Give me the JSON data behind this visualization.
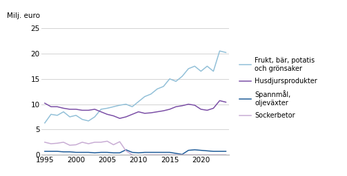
{
  "ylabel": "Milj. euro",
  "ylim": [
    0,
    25
  ],
  "yticks": [
    0,
    5,
    10,
    15,
    20,
    25
  ],
  "xlim": [
    1994.5,
    2024.5
  ],
  "xticks": [
    1995,
    2000,
    2005,
    2010,
    2015,
    2020
  ],
  "background_color": "#ffffff",
  "series": {
    "frukt": {
      "label": "Frukt, bär, potatis\noch grönsaker",
      "color": "#92c0d8",
      "years": [
        1995,
        1996,
        1997,
        1998,
        1999,
        2000,
        2001,
        2002,
        2003,
        2004,
        2005,
        2006,
        2007,
        2008,
        2009,
        2010,
        2011,
        2012,
        2013,
        2014,
        2015,
        2016,
        2017,
        2018,
        2019,
        2020,
        2021,
        2022,
        2023,
        2024
      ],
      "values": [
        6.3,
        8.0,
        7.8,
        8.5,
        7.5,
        7.8,
        7.0,
        6.7,
        7.5,
        9.0,
        9.2,
        9.5,
        9.8,
        10.0,
        9.5,
        10.5,
        11.5,
        12.0,
        13.0,
        13.5,
        15.0,
        14.5,
        15.5,
        17.0,
        17.5,
        16.5,
        17.5,
        16.5,
        20.5,
        20.2
      ]
    },
    "husdjur": {
      "label": "Husdjursprodukter",
      "color": "#7b4fa6",
      "years": [
        1995,
        1996,
        1997,
        1998,
        1999,
        2000,
        2001,
        2002,
        2003,
        2004,
        2005,
        2006,
        2007,
        2008,
        2009,
        2010,
        2011,
        2012,
        2013,
        2014,
        2015,
        2016,
        2017,
        2018,
        2019,
        2020,
        2021,
        2022,
        2023,
        2024
      ],
      "values": [
        10.2,
        9.5,
        9.5,
        9.2,
        9.0,
        9.0,
        8.8,
        8.8,
        9.0,
        8.5,
        8.0,
        7.7,
        7.2,
        7.5,
        8.0,
        8.5,
        8.2,
        8.3,
        8.5,
        8.7,
        9.0,
        9.5,
        9.7,
        10.0,
        9.8,
        9.0,
        8.8,
        9.2,
        10.7,
        10.4
      ]
    },
    "spannmal": {
      "label": "Spannmål,\noljeväxter",
      "color": "#1f5c99",
      "years": [
        1995,
        1996,
        1997,
        1998,
        1999,
        2000,
        2001,
        2002,
        2003,
        2004,
        2005,
        2006,
        2007,
        2008,
        2009,
        2010,
        2011,
        2012,
        2013,
        2014,
        2015,
        2016,
        2017,
        2018,
        2019,
        2020,
        2021,
        2022,
        2023,
        2024
      ],
      "values": [
        0.7,
        0.7,
        0.7,
        0.6,
        0.6,
        0.5,
        0.5,
        0.5,
        0.4,
        0.5,
        0.5,
        0.4,
        0.4,
        1.0,
        0.5,
        0.4,
        0.5,
        0.5,
        0.5,
        0.5,
        0.5,
        0.3,
        0.1,
        0.9,
        1.0,
        0.9,
        0.8,
        0.7,
        0.7,
        0.7
      ]
    },
    "sockerbetor": {
      "label": "Sockerbetor",
      "color": "#c8acd4",
      "years": [
        1995,
        1996,
        1997,
        1998,
        1999,
        2000,
        2001,
        2002,
        2003,
        2004,
        2005,
        2006,
        2007,
        2008,
        2009,
        2010,
        2011,
        2012,
        2013,
        2014,
        2015,
        2016,
        2017,
        2018,
        2019,
        2020,
        2021,
        2022,
        2023,
        2024
      ],
      "values": [
        2.5,
        2.2,
        2.3,
        2.5,
        1.9,
        2.0,
        2.5,
        2.2,
        2.5,
        2.5,
        2.7,
        2.0,
        2.6,
        0.8,
        0.0,
        -0.2,
        0.0,
        0.0,
        0.0,
        0.0,
        0.0,
        0.0,
        0.0,
        0.0,
        0.0,
        0.0,
        0.0,
        0.0,
        0.0,
        0.0
      ]
    }
  }
}
